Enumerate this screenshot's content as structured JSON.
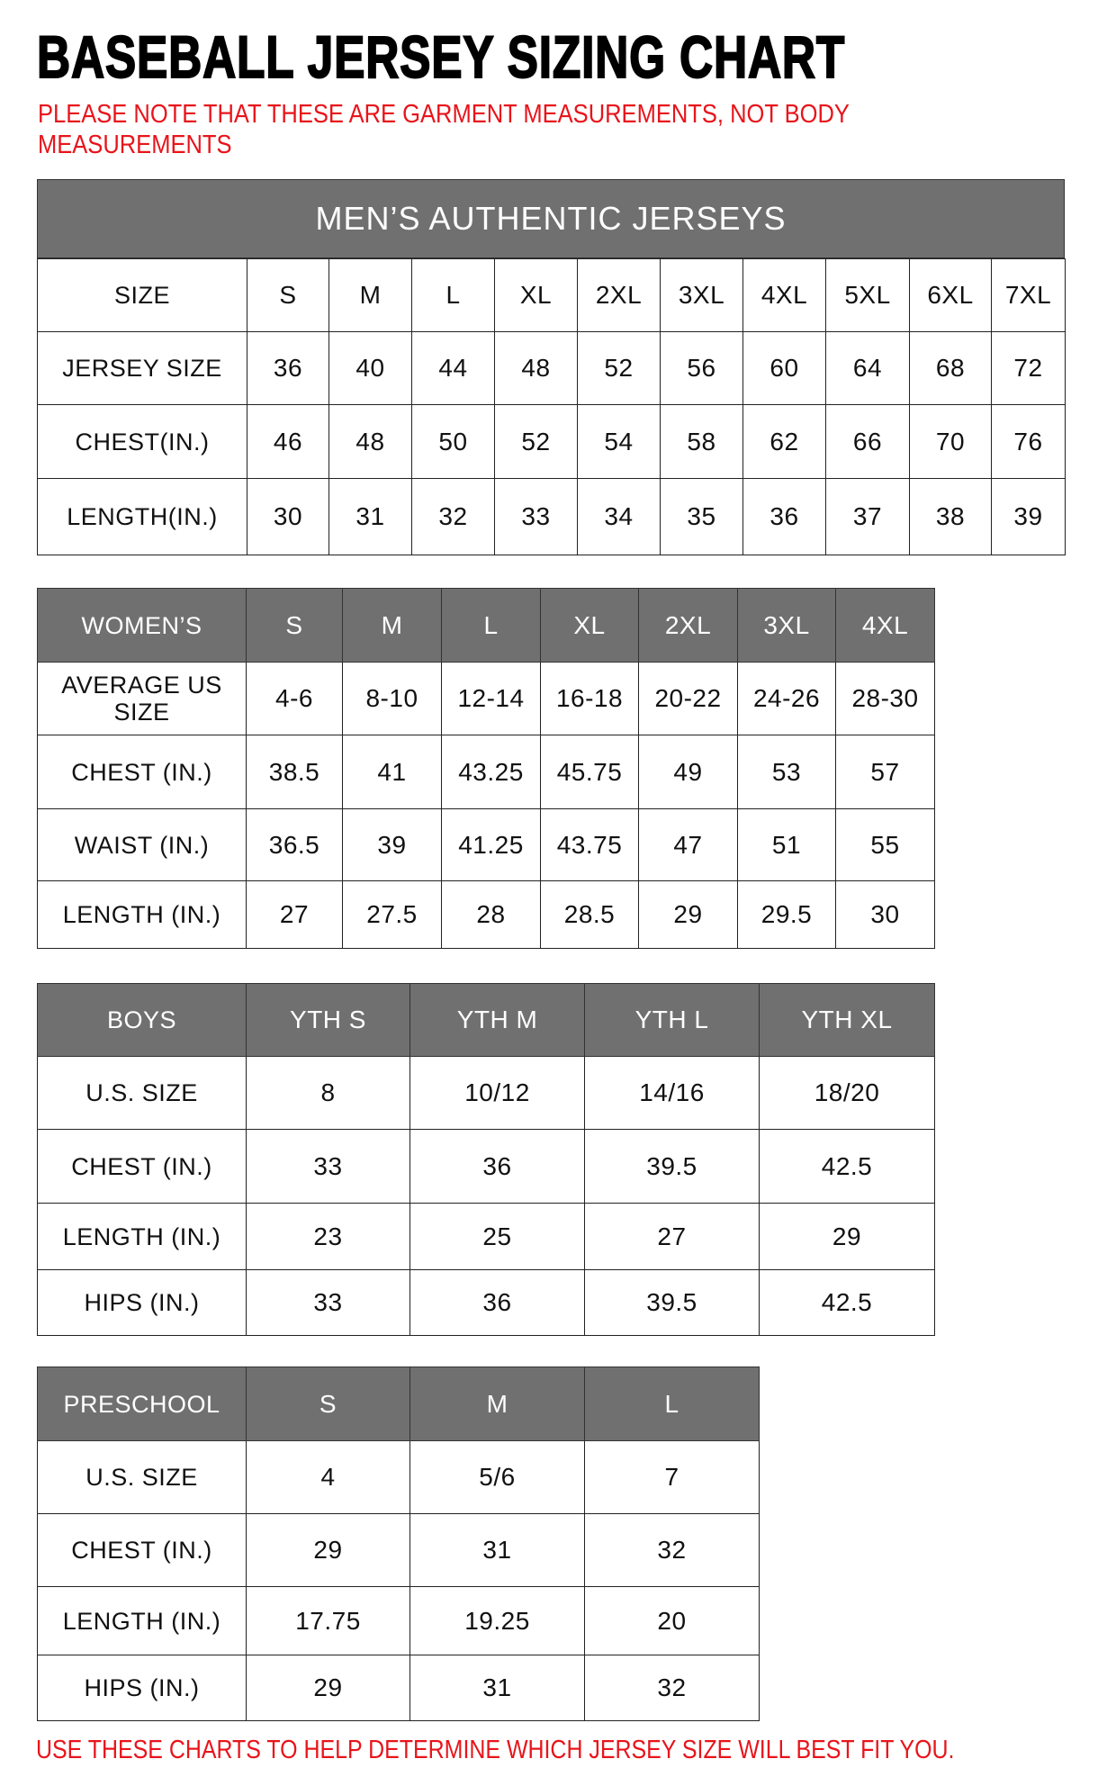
{
  "title": "BASEBALL JERSEY SIZING CHART",
  "note_line1": "PLEASE NOTE THAT THESE ARE GARMENT MEASUREMENTS, NOT BODY",
  "note_line2": "MEASUREMENTS",
  "footer": "USE THESE CHARTS TO HELP DETERMINE WHICH JERSEY SIZE WILL BEST FIT YOU.",
  "colors": {
    "header_gray": "#707070",
    "note_red": "#e8141b"
  },
  "mens": {
    "title": "MEN’S AUTHENTIC JERSEYS",
    "header": [
      "SIZE",
      "S",
      "M",
      "L",
      "XL",
      "2XL",
      "3XL",
      "4XL",
      "5XL",
      "6XL",
      "7XL"
    ],
    "rows": [
      [
        "JERSEY SIZE",
        "36",
        "40",
        "44",
        "48",
        "52",
        "56",
        "60",
        "64",
        "68",
        "72"
      ],
      [
        "CHEST(IN.)",
        "46",
        "48",
        "50",
        "52",
        "54",
        "58",
        "62",
        "66",
        "70",
        "76"
      ],
      [
        "LENGTH(IN.)",
        "30",
        "31",
        "32",
        "33",
        "34",
        "35",
        "36",
        "37",
        "38",
        "39"
      ]
    ]
  },
  "womens": {
    "header": [
      "WOMEN’S",
      "S",
      "M",
      "L",
      "XL",
      "2XL",
      "3XL",
      "4XL"
    ],
    "rows": [
      [
        "AVERAGE US SIZE",
        "4-6",
        "8-10",
        "12-14",
        "16-18",
        "20-22",
        "24-26",
        "28-30"
      ],
      [
        "CHEST (IN.)",
        "38.5",
        "41",
        "43.25",
        "45.75",
        "49",
        "53",
        "57"
      ],
      [
        "WAIST (IN.)",
        "36.5",
        "39",
        "41.25",
        "43.75",
        "47",
        "51",
        "55"
      ],
      [
        "LENGTH (IN.)",
        "27",
        "27.5",
        "28",
        "28.5",
        "29",
        "29.5",
        "30"
      ]
    ]
  },
  "boys": {
    "header": [
      "BOYS",
      "YTH S",
      "YTH M",
      "YTH L",
      "YTH XL"
    ],
    "rows": [
      [
        "U.S. SIZE",
        "8",
        "10/12",
        "14/16",
        "18/20"
      ],
      [
        "CHEST (IN.)",
        "33",
        "36",
        "39.5",
        "42.5"
      ],
      [
        "LENGTH (IN.)",
        "23",
        "25",
        "27",
        "29"
      ],
      [
        "HIPS (IN.)",
        "33",
        "36",
        "39.5",
        "42.5"
      ]
    ]
  },
  "preschool": {
    "header": [
      "PRESCHOOL",
      "S",
      "M",
      "L"
    ],
    "rows": [
      [
        "U.S. SIZE",
        "4",
        "5/6",
        "7"
      ],
      [
        "CHEST (IN.)",
        "29",
        "31",
        "32"
      ],
      [
        "LENGTH (IN.)",
        "17.75",
        "19.25",
        "20"
      ],
      [
        "HIPS (IN.)",
        "29",
        "31",
        "32"
      ]
    ]
  }
}
